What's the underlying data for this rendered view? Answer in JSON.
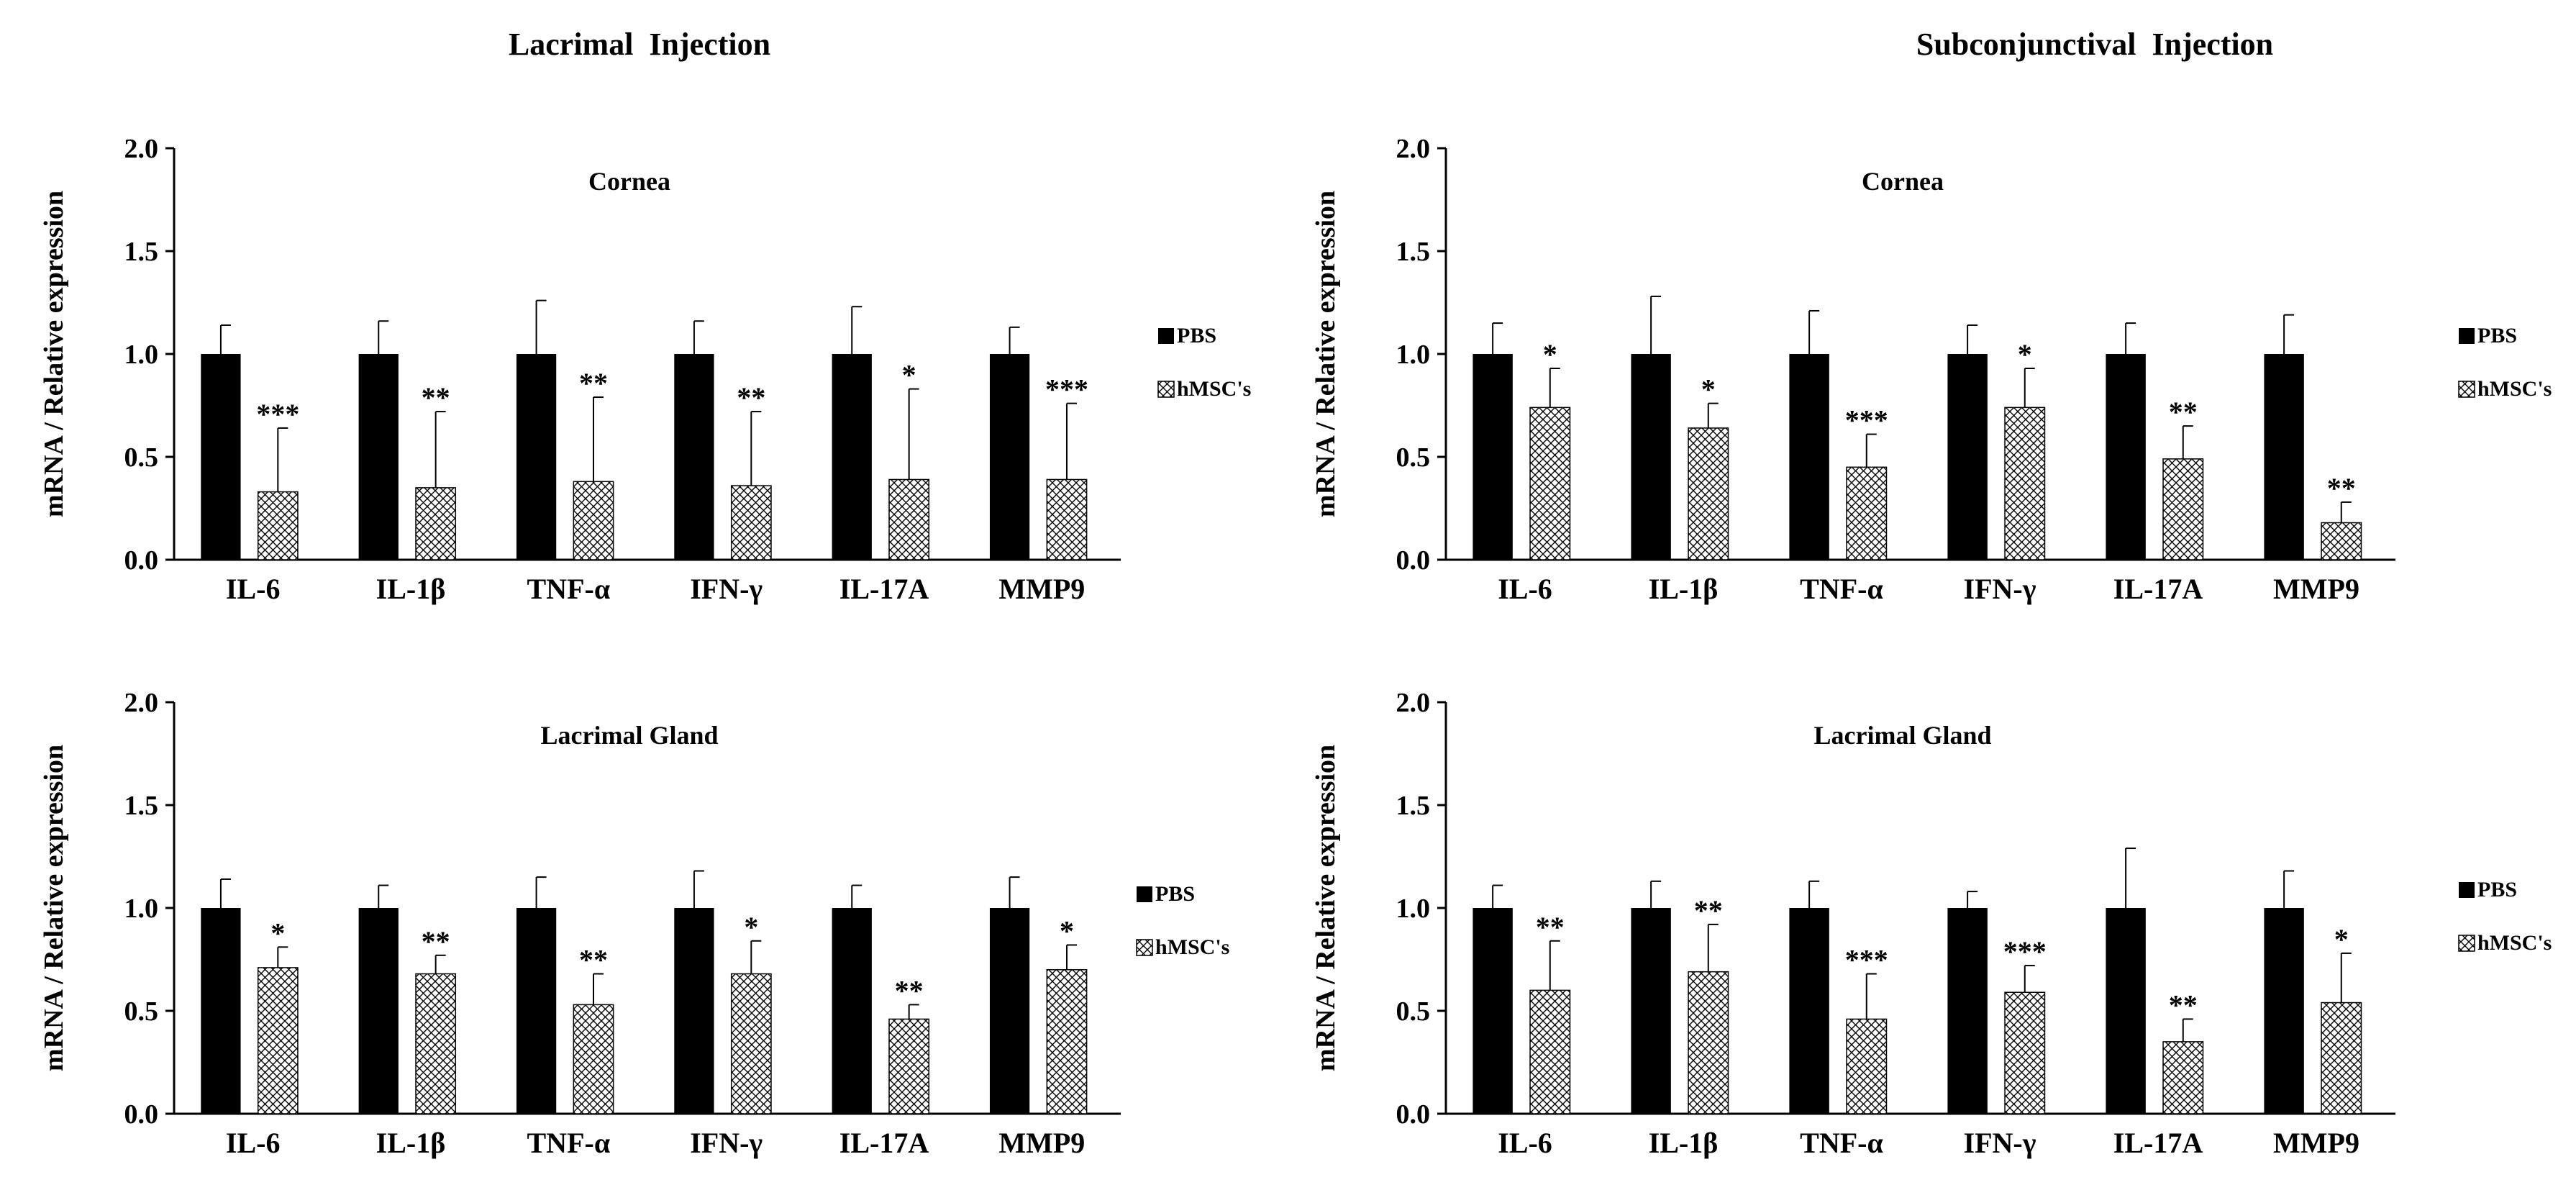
{
  "figure": {
    "left_title": "Lacrimal  Injection",
    "right_title": "Subconjunctival  Injection"
  },
  "chart_data": [
    {
      "type": "bar",
      "column": "Lacrimal  Injection",
      "title": "Cornea",
      "ylabel": "mRNA / Relative expression",
      "xlabel": "",
      "ylim": [
        0,
        2.0
      ],
      "yticks": [
        "0.0",
        "0.5",
        "1.0",
        "1.5",
        "2.0"
      ],
      "categories": [
        "IL-6",
        "IL-1β",
        "TNF-α",
        "IFN-γ",
        "IL-17A",
        "MMP9"
      ],
      "series": [
        {
          "name": "PBS",
          "values": [
            1.0,
            1.0,
            1.0,
            1.0,
            1.0,
            1.0
          ],
          "errors": [
            0.14,
            0.16,
            0.26,
            0.16,
            0.23,
            0.13
          ]
        },
        {
          "name": "hMSC's",
          "values": [
            0.33,
            0.35,
            0.38,
            0.36,
            0.39,
            0.39
          ],
          "errors": [
            0.31,
            0.37,
            0.41,
            0.36,
            0.44,
            0.37
          ]
        }
      ],
      "significance": [
        "***",
        "**",
        "**",
        "**",
        "*",
        "***"
      ],
      "legend": [
        "PBS",
        "hMSC's"
      ]
    },
    {
      "type": "bar",
      "column": "Subconjunctival  Injection",
      "title": "Cornea",
      "ylabel": "mRNA / Relative expression",
      "xlabel": "",
      "ylim": [
        0,
        2.0
      ],
      "yticks": [
        "0.0",
        "0.5",
        "1.0",
        "1.5",
        "2.0"
      ],
      "categories": [
        "IL-6",
        "IL-1β",
        "TNF-α",
        "IFN-γ",
        "IL-17A",
        "MMP9"
      ],
      "series": [
        {
          "name": "PBS",
          "values": [
            1.0,
            1.0,
            1.0,
            1.0,
            1.0,
            1.0
          ],
          "errors": [
            0.15,
            0.28,
            0.21,
            0.14,
            0.15,
            0.19
          ]
        },
        {
          "name": "hMSC's",
          "values": [
            0.74,
            0.64,
            0.45,
            0.74,
            0.49,
            0.18
          ],
          "errors": [
            0.19,
            0.12,
            0.16,
            0.19,
            0.16,
            0.1
          ]
        }
      ],
      "significance": [
        "*",
        "*",
        "***",
        "*",
        "**",
        "**"
      ],
      "legend": [
        "PBS",
        "hMSC's"
      ]
    },
    {
      "type": "bar",
      "column": "Lacrimal  Injection",
      "title": "Lacrimal Gland",
      "ylabel": "mRNA / Relative expression",
      "xlabel": "",
      "ylim": [
        0,
        2.0
      ],
      "yticks": [
        "0.0",
        "0.5",
        "1.0",
        "1.5",
        "2.0"
      ],
      "categories": [
        "IL-6",
        "IL-1β",
        "TNF-α",
        "IFN-γ",
        "IL-17A",
        "MMP9"
      ],
      "series": [
        {
          "name": "PBS",
          "values": [
            1.0,
            1.0,
            1.0,
            1.0,
            1.0,
            1.0
          ],
          "errors": [
            0.14,
            0.11,
            0.15,
            0.18,
            0.11,
            0.15
          ]
        },
        {
          "name": "hMSC's",
          "values": [
            0.71,
            0.68,
            0.53,
            0.68,
            0.46,
            0.7
          ],
          "errors": [
            0.1,
            0.09,
            0.15,
            0.16,
            0.07,
            0.12
          ]
        }
      ],
      "significance": [
        "*",
        "**",
        "**",
        "*",
        "**",
        "*"
      ],
      "legend": [
        "PBS",
        "hMSC's"
      ]
    },
    {
      "type": "bar",
      "column": "Subconjunctival  Injection",
      "title": "Lacrimal Gland",
      "ylabel": "mRNA / Relative expression",
      "xlabel": "",
      "ylim": [
        0,
        2.0
      ],
      "yticks": [
        "0.0",
        "0.5",
        "1.0",
        "1.5",
        "2.0"
      ],
      "categories": [
        "IL-6",
        "IL-1β",
        "TNF-α",
        "IFN-γ",
        "IL-17A",
        "MMP9"
      ],
      "series": [
        {
          "name": "PBS",
          "values": [
            1.0,
            1.0,
            1.0,
            1.0,
            1.0,
            1.0
          ],
          "errors": [
            0.11,
            0.13,
            0.13,
            0.08,
            0.29,
            0.18
          ]
        },
        {
          "name": "hMSC's",
          "values": [
            0.6,
            0.69,
            0.46,
            0.59,
            0.35,
            0.54
          ],
          "errors": [
            0.24,
            0.23,
            0.22,
            0.13,
            0.11,
            0.24
          ]
        }
      ],
      "significance": [
        "**",
        "**",
        "***",
        "***",
        "**",
        "*"
      ],
      "legend": [
        "PBS",
        "hMSC's"
      ]
    }
  ]
}
